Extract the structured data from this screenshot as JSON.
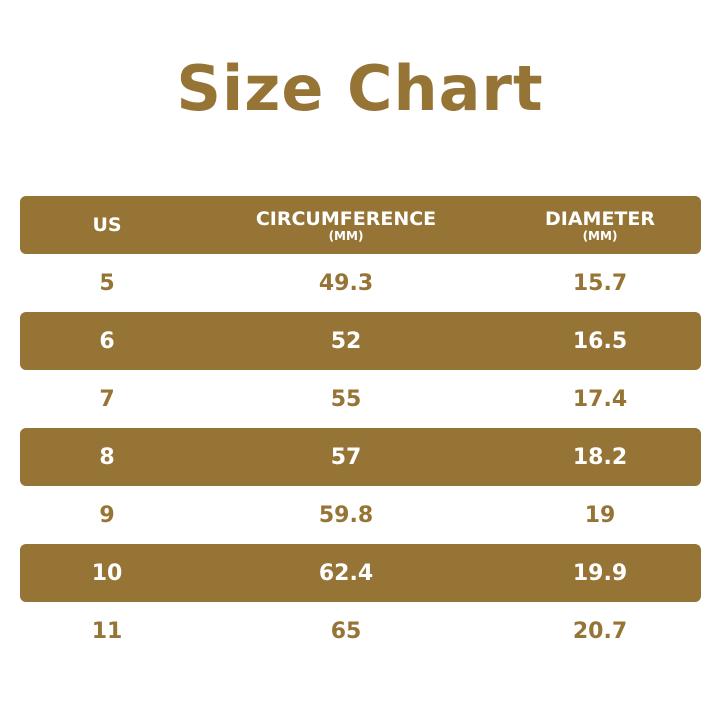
{
  "title": "Size Chart",
  "colors": {
    "accent": "#957435",
    "background": "#ffffff",
    "band_text": "#ffffff"
  },
  "chart_data": {
    "type": "table",
    "title": "Size Chart",
    "columns": [
      {
        "label": "US",
        "unit": ""
      },
      {
        "label": "CIRCUMFERENCE",
        "unit": "(MM)"
      },
      {
        "label": "DIAMETER",
        "unit": "(MM)"
      }
    ],
    "rows": [
      [
        "5",
        "49.3",
        "15.7"
      ],
      [
        "6",
        "52",
        "16.5"
      ],
      [
        "7",
        "55",
        "17.4"
      ],
      [
        "8",
        "57",
        "18.2"
      ],
      [
        "9",
        "59.8",
        "19"
      ],
      [
        "10",
        "62.4",
        "19.9"
      ],
      [
        "11",
        "65",
        "20.7"
      ]
    ]
  }
}
